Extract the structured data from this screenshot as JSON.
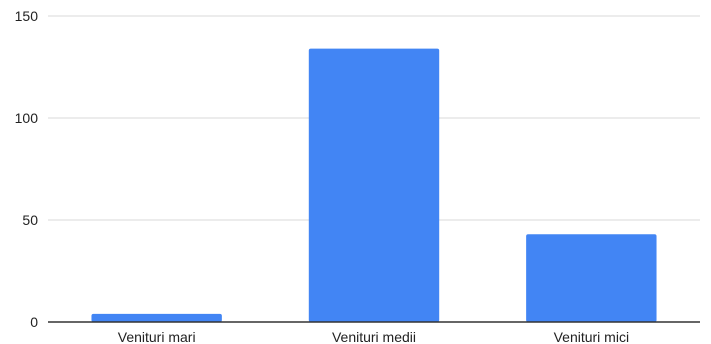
{
  "chart_data": {
    "type": "bar",
    "title": "",
    "xlabel": "",
    "ylabel": "",
    "categories": [
      "Venituri mari",
      "Venituri medii",
      "Venituri mici"
    ],
    "values": [
      4,
      134,
      43
    ],
    "ylim": [
      0,
      150
    ],
    "yticks": [
      "0",
      "50",
      "100",
      "150"
    ],
    "grid": true,
    "legend": "none",
    "colors": {
      "bar": "#4285f4",
      "grid": "#d9d9d9",
      "axis": "#333333",
      "text": "#222222"
    }
  }
}
